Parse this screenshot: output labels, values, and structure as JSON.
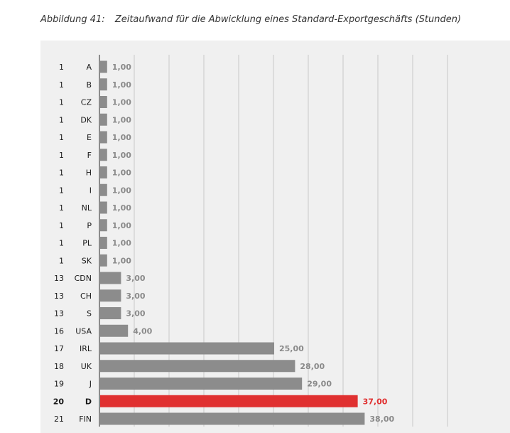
{
  "figure": {
    "number_label": "Abbildung 41:",
    "caption": "Zeitaufwand für die Abwicklung eines Standard-Exportgeschäfts (Stunden)"
  },
  "colors": {
    "bar": "#8c8c8c",
    "highlight": "#e03030",
    "panel": "#f0f0f0",
    "grid": "#c8c8c8",
    "axis": "#8c8c8c"
  },
  "chart_data": {
    "type": "bar",
    "orientation": "horizontal",
    "title": "Zeitaufwand für die Abwicklung eines Standard-Exportgeschäfts (Stunden)",
    "xlabel": "",
    "ylabel": "",
    "xlim": [
      0,
      50
    ],
    "grid": true,
    "highlight_category": "D",
    "ranks": [
      "1",
      "1",
      "1",
      "1",
      "1",
      "1",
      "1",
      "1",
      "1",
      "1",
      "1",
      "1",
      "13",
      "13",
      "13",
      "16",
      "17",
      "18",
      "19",
      "20",
      "21"
    ],
    "categories": [
      "A",
      "B",
      "CZ",
      "DK",
      "E",
      "F",
      "H",
      "I",
      "NL",
      "P",
      "PL",
      "SK",
      "CDN",
      "CH",
      "S",
      "USA",
      "IRL",
      "UK",
      "J",
      "D",
      "FIN"
    ],
    "values": [
      1,
      1,
      1,
      1,
      1,
      1,
      1,
      1,
      1,
      1,
      1,
      1,
      3,
      3,
      3,
      4,
      25,
      28,
      29,
      37,
      38
    ],
    "value_labels": [
      "1,00",
      "1,00",
      "1,00",
      "1,00",
      "1,00",
      "1,00",
      "1,00",
      "1,00",
      "1,00",
      "1,00",
      "1,00",
      "1,00",
      "3,00",
      "3,00",
      "3,00",
      "4,00",
      "25,00",
      "28,00",
      "29,00",
      "37,00",
      "38,00"
    ]
  }
}
